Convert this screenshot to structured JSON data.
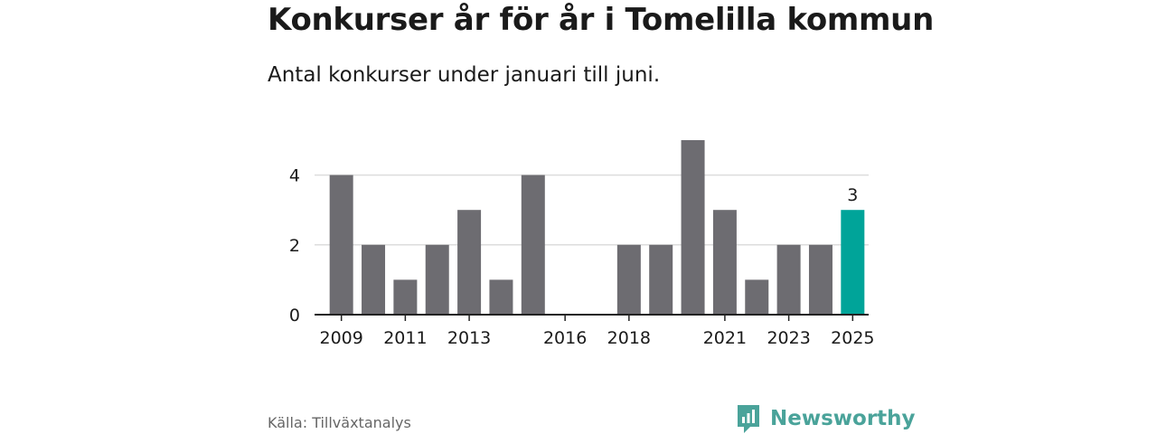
{
  "title": "Konkurser år för år i Tomelilla kommun",
  "subtitle": "Antal konkurser under januari till juni.",
  "source": "Källa: Tillväxtanalys",
  "brand": {
    "name": "Newsworthy",
    "logo_icon": "newsworthy-logo-icon"
  },
  "colors": {
    "bar": "#6d6c71",
    "highlight": "#00a499",
    "grid": "#dddddd",
    "axis": "#222222",
    "text": "#1a1a1a"
  },
  "chart_data": {
    "type": "bar",
    "x": [
      2009,
      2010,
      2011,
      2012,
      2013,
      2014,
      2015,
      2016,
      2017,
      2018,
      2019,
      2020,
      2021,
      2022,
      2023,
      2024,
      2025
    ],
    "values": [
      4,
      2,
      1,
      2,
      3,
      1,
      4,
      0,
      0,
      2,
      2,
      5,
      3,
      1,
      2,
      2,
      3
    ],
    "highlight_index": 16,
    "data_labels": [
      {
        "index": 16,
        "text": "3"
      }
    ],
    "x_tick_labels": [
      "2009",
      "2011",
      "2013",
      "2016",
      "2018",
      "2021",
      "2023",
      "2025"
    ],
    "y_ticks": [
      0,
      2,
      4
    ],
    "ylim": [
      0,
      5
    ],
    "grid": true,
    "xlabel": "",
    "ylabel": ""
  }
}
